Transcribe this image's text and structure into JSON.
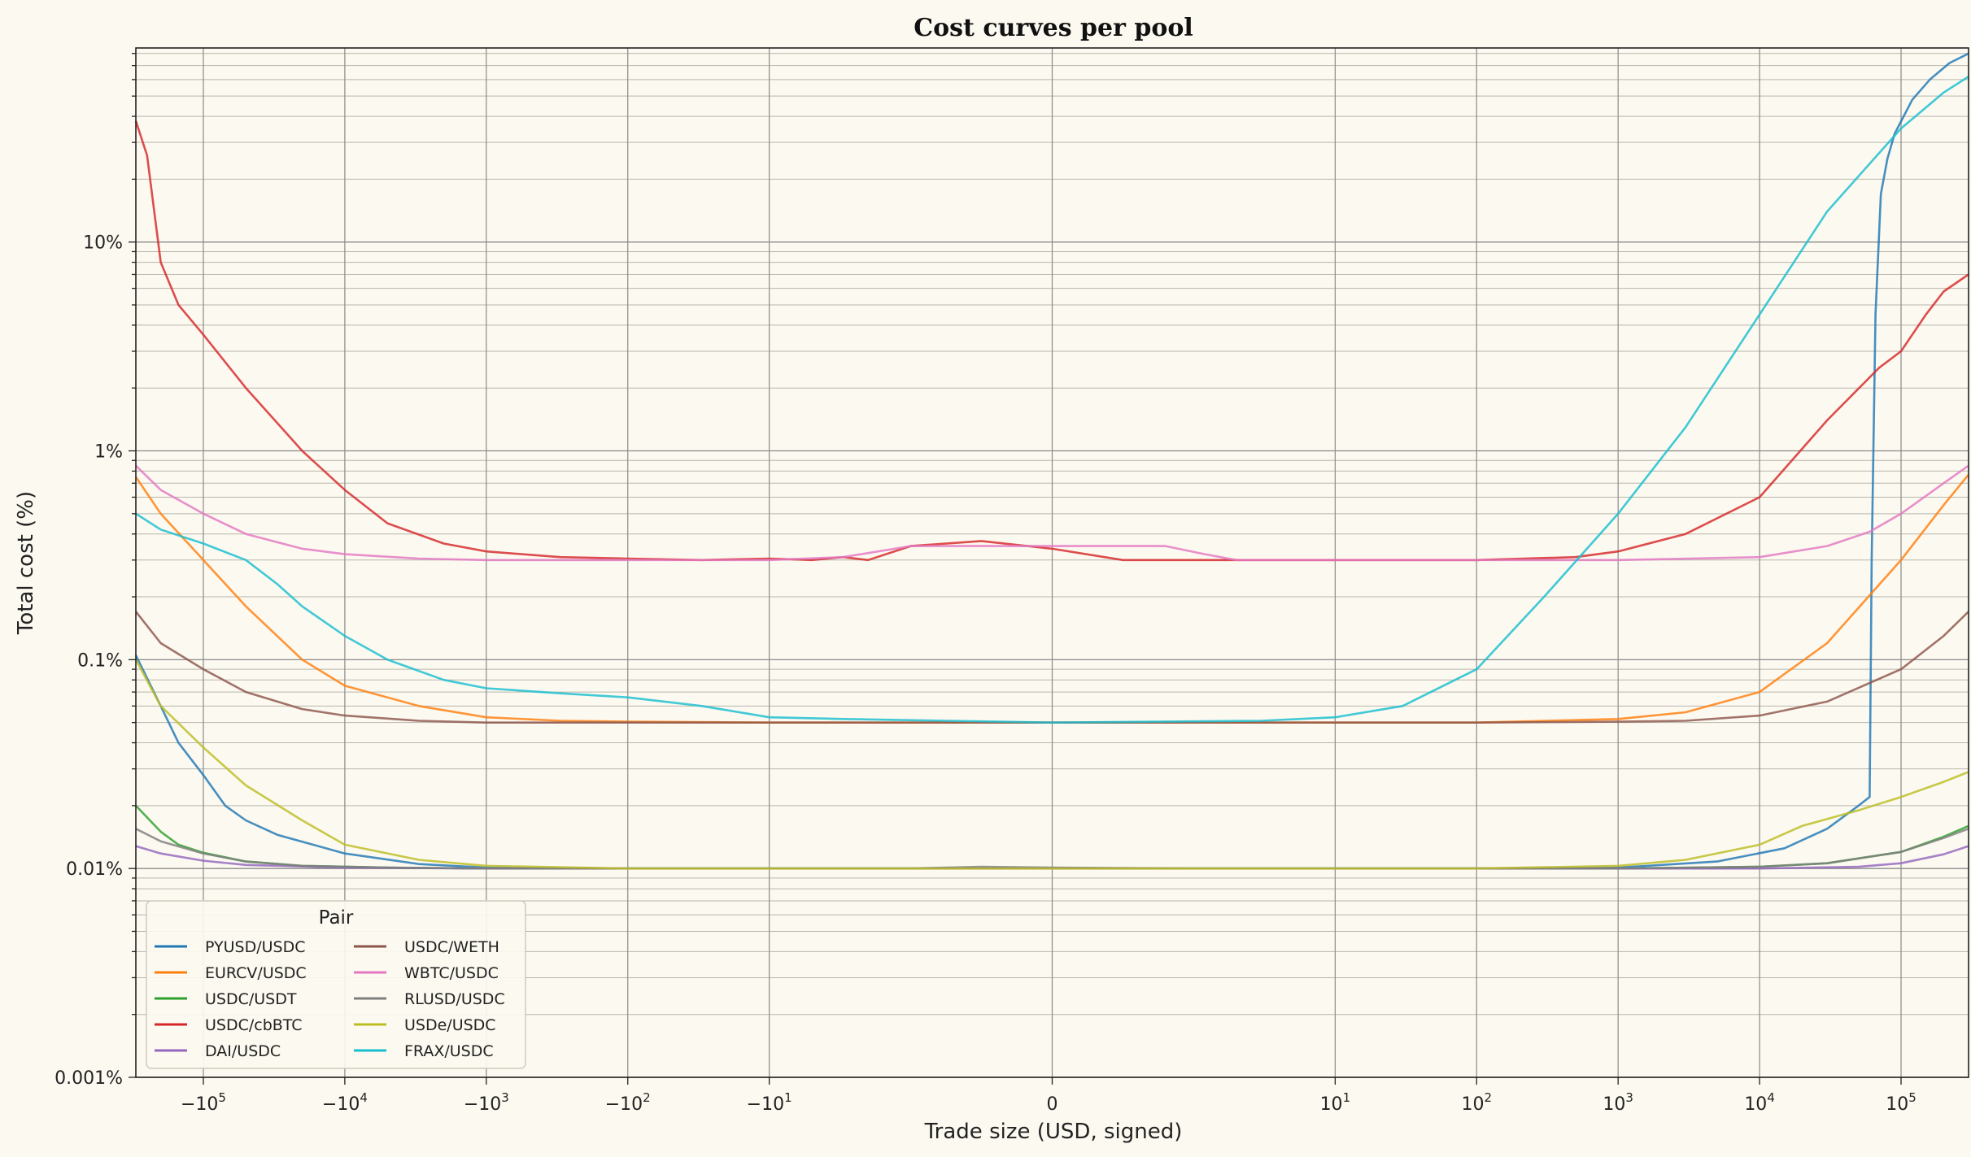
{
  "chart_data": {
    "type": "line",
    "title": "Cost curves per pool",
    "xlabel": "Trade size (USD, signed)",
    "ylabel": "Total cost (%)",
    "x_scale": "symlog",
    "y_scale": "log",
    "xlim": [
      -300000,
      300000
    ],
    "ylim": [
      0.001,
      85
    ],
    "grid": true,
    "legend": {
      "title": "Pair",
      "placement": "lower-left",
      "columns": 2
    },
    "x_ticks": [
      {
        "value": -100000,
        "base": "−10",
        "exp": "5"
      },
      {
        "value": -10000,
        "base": "−10",
        "exp": "4"
      },
      {
        "value": -1000,
        "base": "−10",
        "exp": "3"
      },
      {
        "value": -100,
        "base": "−10",
        "exp": "2"
      },
      {
        "value": -10,
        "base": "−10",
        "exp": "1"
      },
      {
        "value": 0,
        "base": "0",
        "exp": ""
      },
      {
        "value": 10,
        "base": "10",
        "exp": "1"
      },
      {
        "value": 100,
        "base": "10",
        "exp": "2"
      },
      {
        "value": 1000,
        "base": "10",
        "exp": "3"
      },
      {
        "value": 10000,
        "base": "10",
        "exp": "4"
      },
      {
        "value": 100000,
        "base": "10",
        "exp": "5"
      }
    ],
    "y_ticks": [
      {
        "value": 0.001,
        "label": "0.001%"
      },
      {
        "value": 0.01,
        "label": "0.01%"
      },
      {
        "value": 0.1,
        "label": "0.1%"
      },
      {
        "value": 1,
        "label": "1%"
      },
      {
        "value": 10,
        "label": "10%"
      }
    ],
    "series": [
      {
        "name": "PYUSD/USDC",
        "color": "#1f77b4",
        "points": [
          [
            -300000,
            0.105
          ],
          [
            -200000,
            0.06
          ],
          [
            -150000,
            0.04
          ],
          [
            -100000,
            0.028
          ],
          [
            -70000,
            0.02
          ],
          [
            -50000,
            0.017
          ],
          [
            -30000,
            0.0145
          ],
          [
            -10000,
            0.0118
          ],
          [
            -3000,
            0.0105
          ],
          [
            -1000,
            0.0101
          ],
          [
            -100,
            0.01
          ],
          [
            -10,
            0.01
          ],
          [
            -1,
            0.01
          ],
          [
            0,
            0.01
          ],
          [
            1,
            0.01
          ],
          [
            10,
            0.01
          ],
          [
            100,
            0.01
          ],
          [
            1000,
            0.0101
          ],
          [
            5000,
            0.0108
          ],
          [
            15000,
            0.0125
          ],
          [
            30000,
            0.0155
          ],
          [
            50000,
            0.02
          ],
          [
            60000,
            0.022
          ],
          [
            62000,
            0.3
          ],
          [
            66000,
            4.5
          ],
          [
            72000,
            17
          ],
          [
            80000,
            25
          ],
          [
            90000,
            33
          ],
          [
            120000,
            48
          ],
          [
            160000,
            60
          ],
          [
            220000,
            72
          ],
          [
            300000,
            80
          ]
        ]
      },
      {
        "name": "EURCV/USDC",
        "color": "#ff7f0e",
        "points": [
          [
            -300000,
            0.75
          ],
          [
            -200000,
            0.5
          ],
          [
            -100000,
            0.3
          ],
          [
            -50000,
            0.18
          ],
          [
            -20000,
            0.1
          ],
          [
            -10000,
            0.075
          ],
          [
            -3000,
            0.06
          ],
          [
            -1000,
            0.053
          ],
          [
            -300,
            0.051
          ],
          [
            -100,
            0.0505
          ],
          [
            -10,
            0.05
          ],
          [
            0,
            0.05
          ],
          [
            10,
            0.05
          ],
          [
            100,
            0.05
          ],
          [
            1000,
            0.052
          ],
          [
            3000,
            0.056
          ],
          [
            10000,
            0.07
          ],
          [
            30000,
            0.12
          ],
          [
            100000,
            0.3
          ],
          [
            200000,
            0.55
          ],
          [
            300000,
            0.77
          ]
        ]
      },
      {
        "name": "USDC/USDT",
        "color": "#2ca02c",
        "points": [
          [
            -300000,
            0.02
          ],
          [
            -200000,
            0.015
          ],
          [
            -150000,
            0.013
          ],
          [
            -100000,
            0.0119
          ],
          [
            -50000,
            0.0108
          ],
          [
            -20000,
            0.0103
          ],
          [
            -5000,
            0.0101
          ],
          [
            -1000,
            0.01
          ],
          [
            0,
            0.01
          ],
          [
            1000,
            0.01
          ],
          [
            10000,
            0.0102
          ],
          [
            30000,
            0.0106
          ],
          [
            100000,
            0.012
          ],
          [
            200000,
            0.0142
          ],
          [
            300000,
            0.016
          ]
        ]
      },
      {
        "name": "USDC/cbBTC",
        "color": "#d62728",
        "points": [
          [
            -300000,
            38
          ],
          [
            -250000,
            26
          ],
          [
            -200000,
            8
          ],
          [
            -150000,
            5
          ],
          [
            -100000,
            3.6
          ],
          [
            -50000,
            2
          ],
          [
            -20000,
            1
          ],
          [
            -10000,
            0.65
          ],
          [
            -5000,
            0.45
          ],
          [
            -2000,
            0.36
          ],
          [
            -1000,
            0.33
          ],
          [
            -300,
            0.31
          ],
          [
            -100,
            0.305
          ],
          [
            -30,
            0.3
          ],
          [
            -10,
            0.305
          ],
          [
            -5,
            0.3
          ],
          [
            -3,
            0.31
          ],
          [
            -2,
            0.3
          ],
          [
            -1,
            0.35
          ],
          [
            -0.5,
            0.37
          ],
          [
            0,
            0.34
          ],
          [
            0.5,
            0.3
          ],
          [
            1,
            0.3
          ],
          [
            10,
            0.3
          ],
          [
            100,
            0.3
          ],
          [
            500,
            0.31
          ],
          [
            1000,
            0.33
          ],
          [
            3000,
            0.4
          ],
          [
            10000,
            0.6
          ],
          [
            30000,
            1.4
          ],
          [
            70000,
            2.5
          ],
          [
            100000,
            3
          ],
          [
            150000,
            4.5
          ],
          [
            200000,
            5.8
          ],
          [
            300000,
            7
          ]
        ]
      },
      {
        "name": "DAI/USDC",
        "color": "#9467bd",
        "points": [
          [
            -300000,
            0.0128
          ],
          [
            -200000,
            0.0118
          ],
          [
            -100000,
            0.0109
          ],
          [
            -50000,
            0.0104
          ],
          [
            -10000,
            0.0101
          ],
          [
            -1000,
            0.01
          ],
          [
            0,
            0.01
          ],
          [
            1000,
            0.01
          ],
          [
            10000,
            0.01
          ],
          [
            50000,
            0.0102
          ],
          [
            100000,
            0.0106
          ],
          [
            200000,
            0.0117
          ],
          [
            300000,
            0.0128
          ]
        ]
      },
      {
        "name": "USDC/WETH",
        "color": "#8c564b",
        "points": [
          [
            -300000,
            0.17
          ],
          [
            -200000,
            0.12
          ],
          [
            -100000,
            0.09
          ],
          [
            -50000,
            0.07
          ],
          [
            -20000,
            0.058
          ],
          [
            -10000,
            0.054
          ],
          [
            -3000,
            0.051
          ],
          [
            -1000,
            0.05
          ],
          [
            -100,
            0.05
          ],
          [
            0,
            0.05
          ],
          [
            100,
            0.05
          ],
          [
            1000,
            0.0505
          ],
          [
            3000,
            0.051
          ],
          [
            10000,
            0.054
          ],
          [
            30000,
            0.063
          ],
          [
            100000,
            0.09
          ],
          [
            200000,
            0.13
          ],
          [
            300000,
            0.17
          ]
        ]
      },
      {
        "name": "WBTC/USDC",
        "color": "#e377c2",
        "points": [
          [
            -300000,
            0.85
          ],
          [
            -200000,
            0.65
          ],
          [
            -100000,
            0.5
          ],
          [
            -50000,
            0.4
          ],
          [
            -20000,
            0.34
          ],
          [
            -10000,
            0.32
          ],
          [
            -3000,
            0.305
          ],
          [
            -1000,
            0.3
          ],
          [
            -100,
            0.3
          ],
          [
            -10,
            0.3
          ],
          [
            -3,
            0.31
          ],
          [
            -1,
            0.35
          ],
          [
            0,
            0.35
          ],
          [
            0.8,
            0.35
          ],
          [
            1.2,
            0.32
          ],
          [
            2,
            0.3
          ],
          [
            10,
            0.3
          ],
          [
            100,
            0.3
          ],
          [
            1000,
            0.3
          ],
          [
            10000,
            0.31
          ],
          [
            30000,
            0.35
          ],
          [
            60000,
            0.41
          ],
          [
            100000,
            0.5
          ],
          [
            200000,
            0.7
          ],
          [
            300000,
            0.85
          ]
        ]
      },
      {
        "name": "RLUSD/USDC",
        "color": "#7f7f7f",
        "points": [
          [
            -300000,
            0.0155
          ],
          [
            -200000,
            0.0135
          ],
          [
            -100000,
            0.0118
          ],
          [
            -50000,
            0.0108
          ],
          [
            -20000,
            0.0103
          ],
          [
            -5000,
            0.0101
          ],
          [
            -1000,
            0.01
          ],
          [
            -1,
            0.01
          ],
          [
            -0.5,
            0.0102
          ],
          [
            0,
            0.0101
          ],
          [
            1,
            0.01
          ],
          [
            1000,
            0.01
          ],
          [
            10000,
            0.0102
          ],
          [
            30000,
            0.0106
          ],
          [
            100000,
            0.012
          ],
          [
            200000,
            0.014
          ],
          [
            300000,
            0.0155
          ]
        ]
      },
      {
        "name": "USDe/USDC",
        "color": "#bcbd22",
        "points": [
          [
            -300000,
            0.1
          ],
          [
            -200000,
            0.06
          ],
          [
            -100000,
            0.038
          ],
          [
            -50000,
            0.025
          ],
          [
            -20000,
            0.017
          ],
          [
            -10000,
            0.013
          ],
          [
            -3000,
            0.011
          ],
          [
            -1000,
            0.0103
          ],
          [
            -100,
            0.01
          ],
          [
            0,
            0.01
          ],
          [
            100,
            0.01
          ],
          [
            1000,
            0.0103
          ],
          [
            3000,
            0.011
          ],
          [
            10000,
            0.013
          ],
          [
            20000,
            0.016
          ],
          [
            50000,
            0.019
          ],
          [
            100000,
            0.022
          ],
          [
            200000,
            0.026
          ],
          [
            300000,
            0.029
          ]
        ]
      },
      {
        "name": "FRAX/USDC",
        "color": "#17becf",
        "points": [
          [
            -300000,
            0.5
          ],
          [
            -200000,
            0.42
          ],
          [
            -100000,
            0.36
          ],
          [
            -50000,
            0.3
          ],
          [
            -30000,
            0.23
          ],
          [
            -20000,
            0.18
          ],
          [
            -10000,
            0.13
          ],
          [
            -5000,
            0.1
          ],
          [
            -2000,
            0.08
          ],
          [
            -1000,
            0.073
          ],
          [
            -300,
            0.069
          ],
          [
            -100,
            0.066
          ],
          [
            -30,
            0.06
          ],
          [
            -10,
            0.053
          ],
          [
            -3,
            0.052
          ],
          [
            0,
            0.05
          ],
          [
            3,
            0.051
          ],
          [
            10,
            0.053
          ],
          [
            30,
            0.06
          ],
          [
            100,
            0.09
          ],
          [
            300,
            0.2
          ],
          [
            1000,
            0.5
          ],
          [
            3000,
            1.3
          ],
          [
            10000,
            4.5
          ],
          [
            30000,
            14
          ],
          [
            100000,
            35
          ],
          [
            200000,
            52
          ],
          [
            300000,
            62
          ]
        ]
      }
    ]
  }
}
